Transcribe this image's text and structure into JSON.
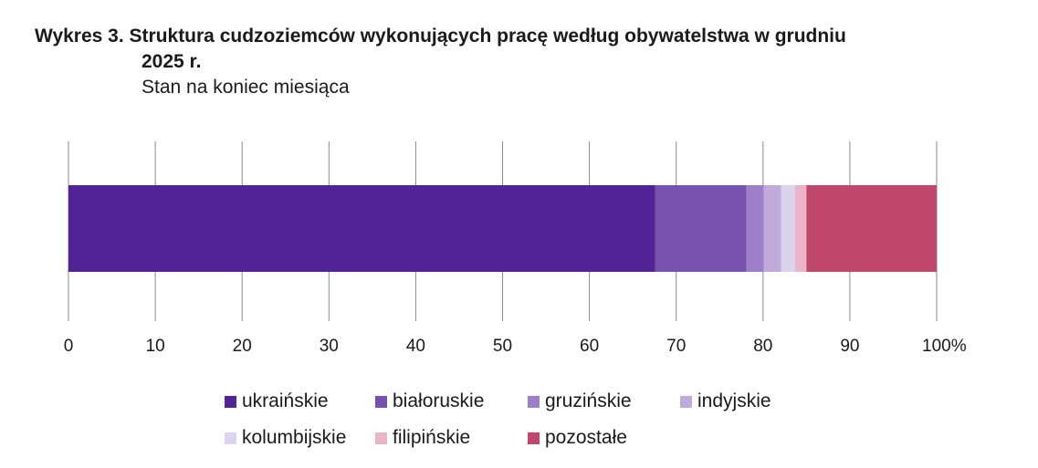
{
  "title": {
    "line1": "Wykres 3. Struktura cudzoziemców wykonujących pracę według obywatelstwa w grudniu",
    "line2": "2025 r.",
    "subtitle": "Stan na koniec miesiąca"
  },
  "chart_data": {
    "type": "bar",
    "orientation": "horizontal-stacked-100",
    "xlim": [
      0,
      100
    ],
    "x_ticks": [
      "0",
      "10",
      "20",
      "30",
      "40",
      "50",
      "60",
      "70",
      "80",
      "90",
      "100%"
    ],
    "grid": true,
    "legend_position": "bottom",
    "series": [
      {
        "name": "ukraińskie",
        "value": 67.6,
        "color": "#512396"
      },
      {
        "name": "białoruskie",
        "value": 10.5,
        "color": "#7652ae"
      },
      {
        "name": "gruzińskie",
        "value": 2.0,
        "color": "#9c7fc8"
      },
      {
        "name": "indyjskie",
        "value": 2.0,
        "color": "#bfaadb"
      },
      {
        "name": "kolumbijskie",
        "value": 1.6,
        "color": "#dcd3ef"
      },
      {
        "name": "filipińskie",
        "value": 1.3,
        "color": "#eab5c6"
      },
      {
        "name": "pozostałe",
        "value": 15.0,
        "color": "#c0476d"
      }
    ]
  }
}
